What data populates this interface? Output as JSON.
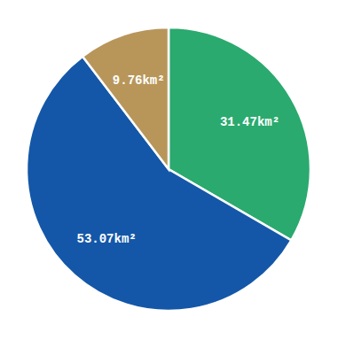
{
  "chart_data": {
    "type": "pie",
    "values": [
      31.47,
      53.07,
      9.76
    ],
    "value_labels": [
      "31.47km²",
      "53.07km²",
      "9.76km²"
    ],
    "colors": [
      "#2aaa6e",
      "#1457a8",
      "#b8965a"
    ],
    "data_labels": true
  }
}
